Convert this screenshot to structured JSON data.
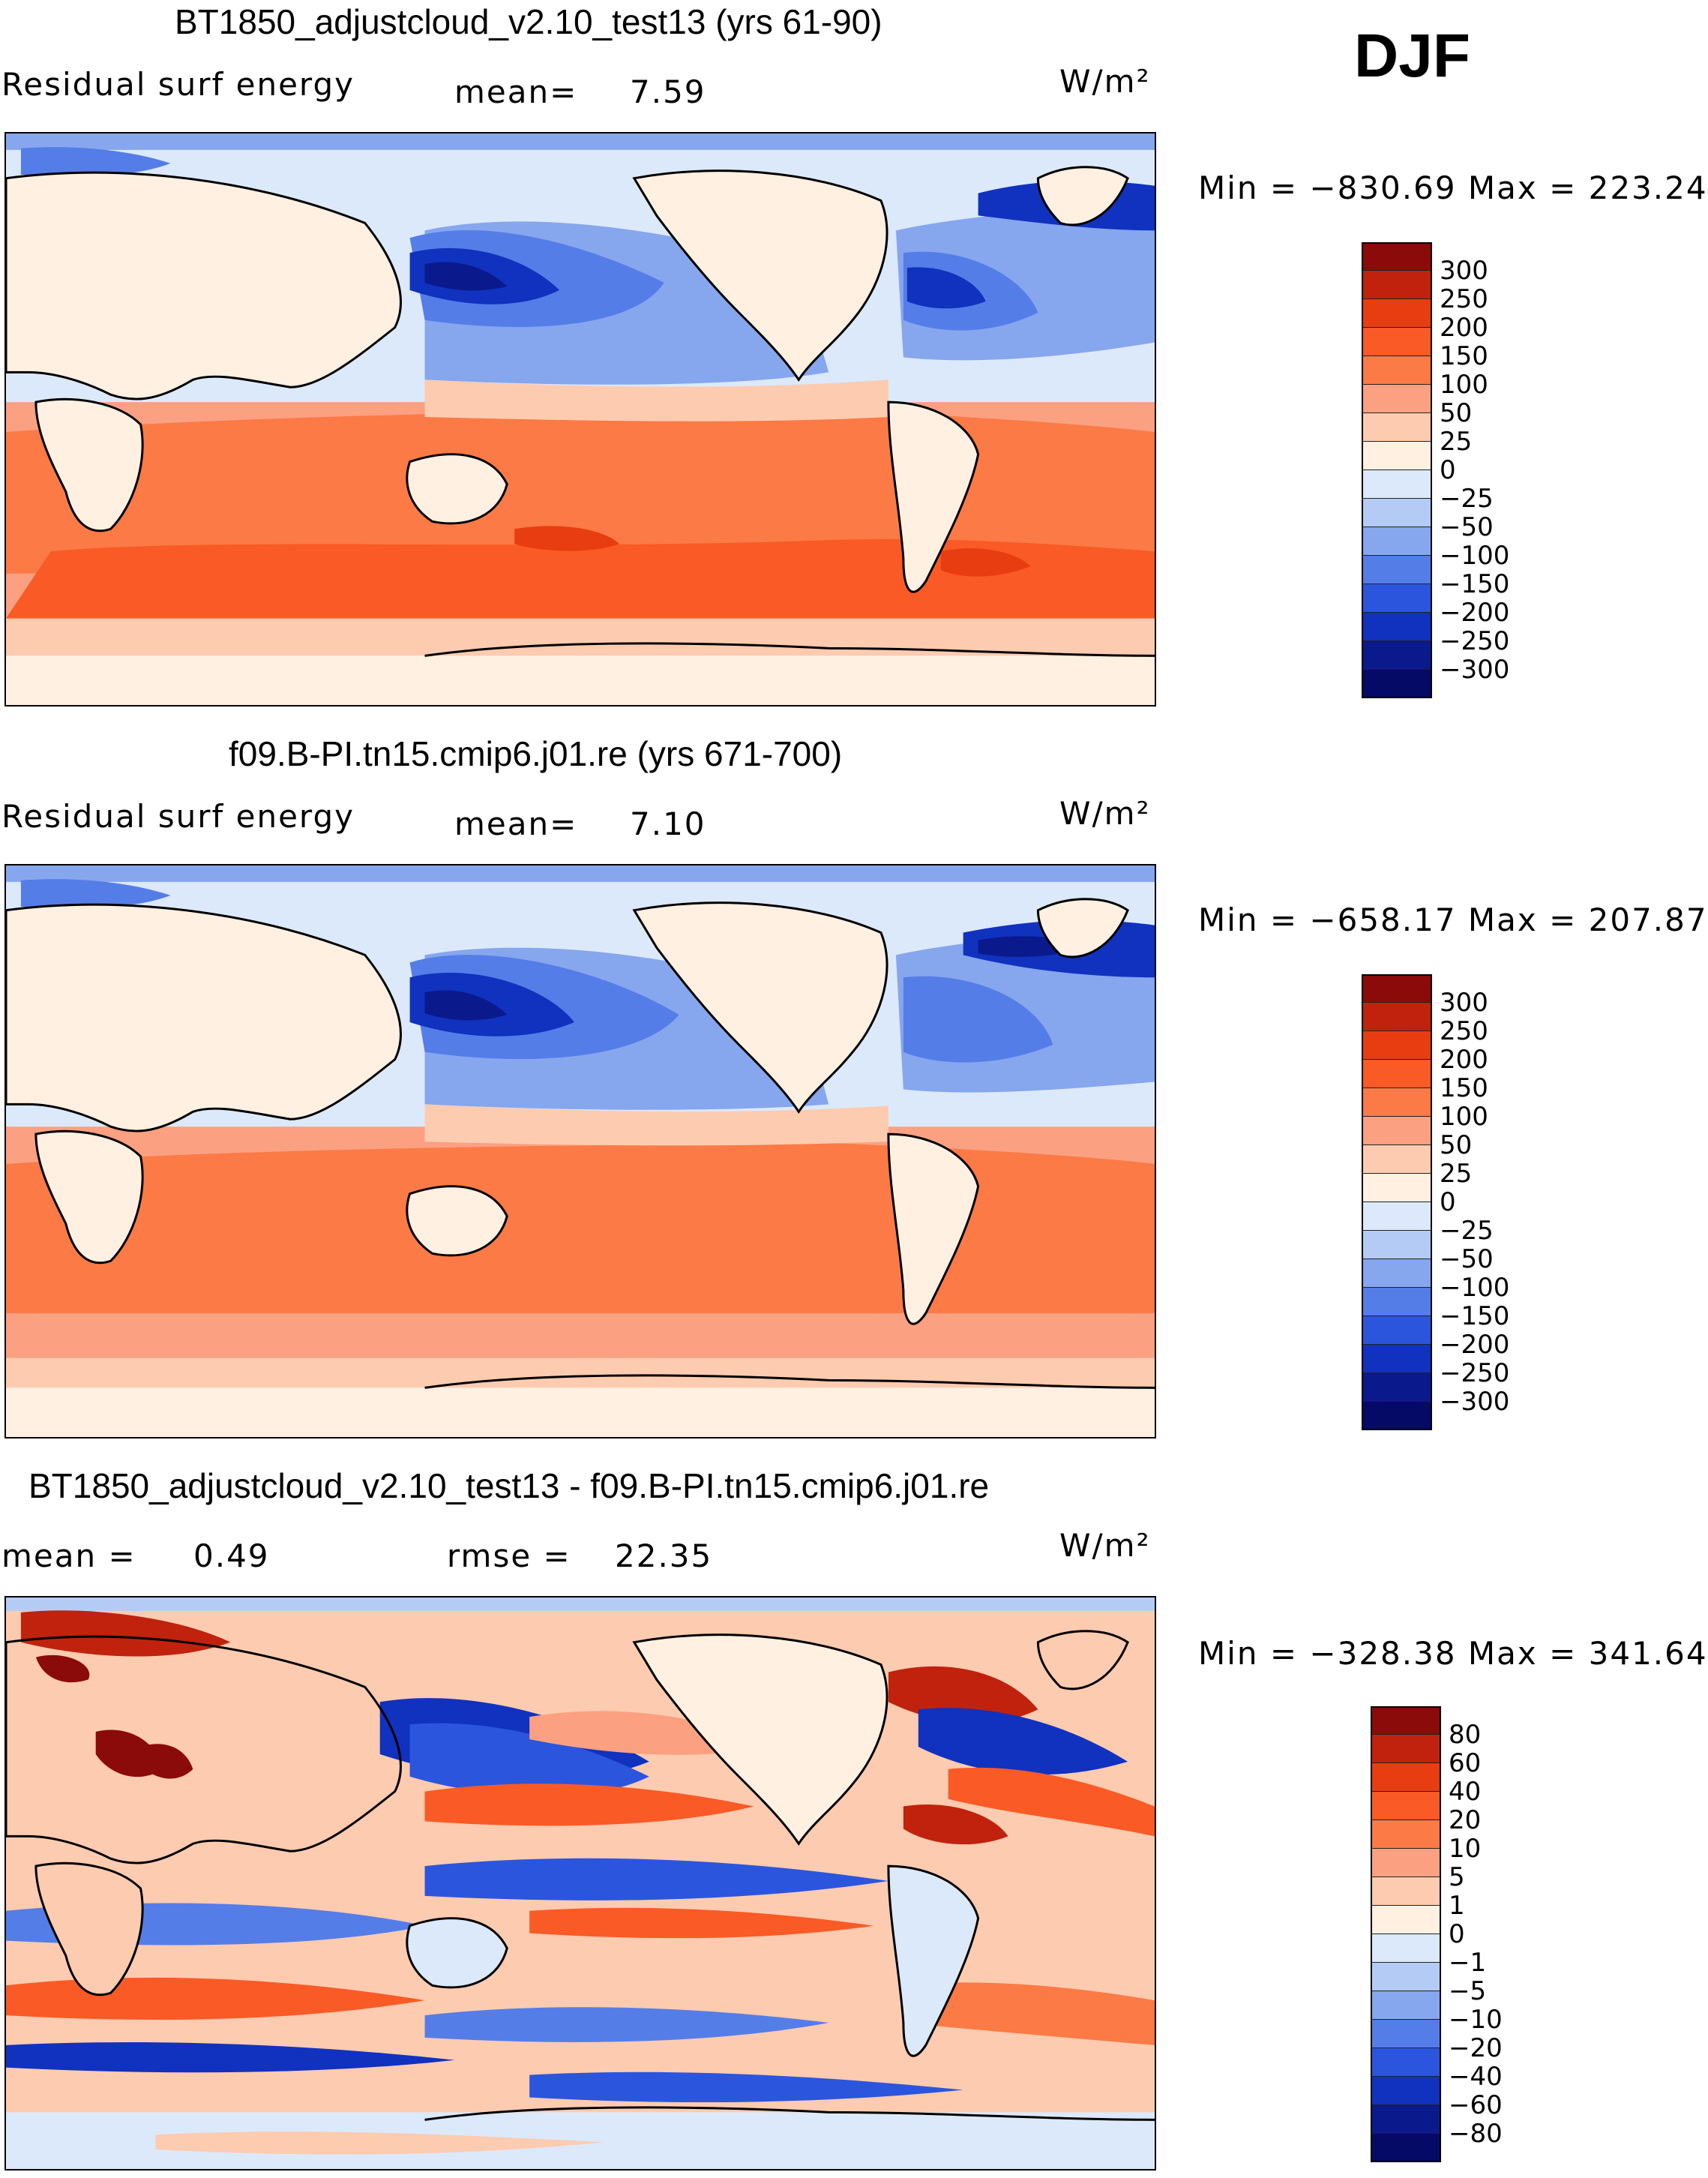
{
  "season": "DJF",
  "panels": [
    {
      "title": "BT1850_adjustcloud_v2.10_test13 (yrs 61-90)",
      "left_label": "Residual surf energy",
      "mid_label": "mean=",
      "mid_value": "7.59",
      "units": "W/m²",
      "minmax": "Min = −830.69 Max = 223.24",
      "colorbar": {
        "levels": [
          "300",
          "250",
          "200",
          "150",
          "100",
          "50",
          "25",
          "0",
          "−25",
          "−50",
          "−100",
          "−150",
          "−200",
          "−250",
          "−300"
        ],
        "colors": [
          "#8b0a0a",
          "#c0220d",
          "#e83d10",
          "#fa5a25",
          "#fb7a45",
          "#fca082",
          "#fdcbb0",
          "#fff0e2",
          "#dce9fa",
          "#b4ccf5",
          "#86a6ee",
          "#557de8",
          "#2b55dd",
          "#1032bf",
          "#0a1a8c",
          "#050a66"
        ]
      }
    },
    {
      "title": "f09.B-PI.tn15.cmip6.j01.re (yrs 671-700)",
      "left_label": "Residual surf energy",
      "mid_label": "mean=",
      "mid_value": "7.10",
      "units": "W/m²",
      "minmax": "Min = −658.17 Max = 207.87",
      "colorbar": {
        "levels": [
          "300",
          "250",
          "200",
          "150",
          "100",
          "50",
          "25",
          "0",
          "−25",
          "−50",
          "−100",
          "−150",
          "−200",
          "−250",
          "−300"
        ],
        "colors": [
          "#8b0a0a",
          "#c0220d",
          "#e83d10",
          "#fa5a25",
          "#fb7a45",
          "#fca082",
          "#fdcbb0",
          "#fff0e2",
          "#dce9fa",
          "#b4ccf5",
          "#86a6ee",
          "#557de8",
          "#2b55dd",
          "#1032bf",
          "#0a1a8c",
          "#050a66"
        ]
      }
    },
    {
      "title": "BT1850_adjustcloud_v2.10_test13 - f09.B-PI.tn15.cmip6.j01.re",
      "left_label": "mean =",
      "left_value": "0.49",
      "mid_label": "rmse =",
      "mid_value": "22.35",
      "units": "W/m²",
      "minmax": "Min = −328.38 Max = 341.64",
      "colorbar": {
        "levels": [
          "80",
          "60",
          "40",
          "20",
          "10",
          "5",
          "1",
          "0",
          "−1",
          "−5",
          "−10",
          "−20",
          "−40",
          "−60",
          "−80"
        ],
        "colors": [
          "#8b0a0a",
          "#c0220d",
          "#e83d10",
          "#fa5a25",
          "#fb7a45",
          "#fca082",
          "#fdcbb0",
          "#fff0e2",
          "#dce9fa",
          "#b4ccf5",
          "#86a6ee",
          "#557de8",
          "#2b55dd",
          "#1032bf",
          "#0a1a8c",
          "#050a66"
        ]
      }
    }
  ],
  "colors": {
    "land": "#fff0e2",
    "ocean_pale_blue": "#dce9fa",
    "deep_blue": "#1032bf",
    "mid_blue": "#557de8",
    "light_blue": "#86a6ee",
    "red_orange": "#fb7a45",
    "orange_strong": "#fa5a25",
    "salmon": "#fca082",
    "peach": "#fdcbb0",
    "dark_red": "#c0220d"
  }
}
